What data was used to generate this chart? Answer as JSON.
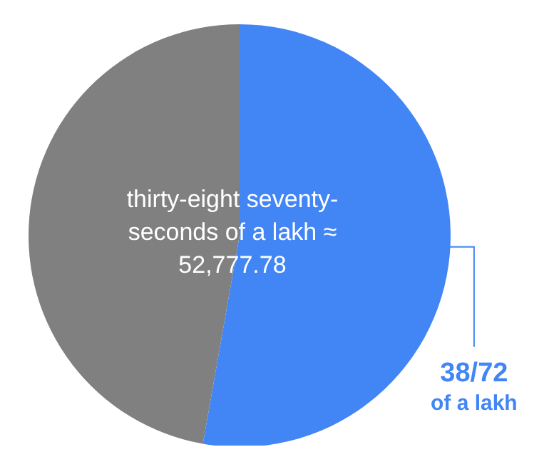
{
  "chart_data": {
    "type": "pie",
    "categories": [
      "38/72 of a lakh",
      null
    ],
    "values": [
      52.78,
      47.22
    ],
    "colors": [
      "#4285f4",
      "#808080"
    ],
    "annotations": [
      "thirty-eight seventy-seconds of a lakh ≈ 52,777.78"
    ],
    "legend": false
  }
}
